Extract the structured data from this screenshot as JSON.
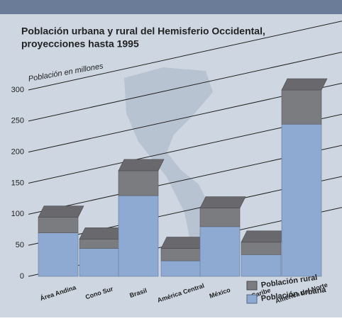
{
  "chart_data": {
    "type": "stacked-bar-3d",
    "title": [
      "Población urbana y rural del Hemisferio Occidental,",
      "proyecciones hasta 1995"
    ],
    "y_label": "Población en millones",
    "categories": [
      "Área Andina",
      "Cono Sur",
      "Brasil",
      "América Central",
      "México",
      "Caribe",
      "América del Norte"
    ],
    "series": [
      {
        "name": "Población urbana",
        "color": "#8eaad3",
        "values": [
          70,
          45,
          130,
          25,
          80,
          35,
          245
        ]
      },
      {
        "name": "Población rural",
        "color": "#7b7c80",
        "values": [
          25,
          15,
          40,
          20,
          30,
          20,
          55
        ]
      }
    ],
    "ylim": [
      0,
      300
    ],
    "yticks": [
      0,
      50,
      100,
      150,
      200,
      250,
      300
    ],
    "grid": true
  }
}
